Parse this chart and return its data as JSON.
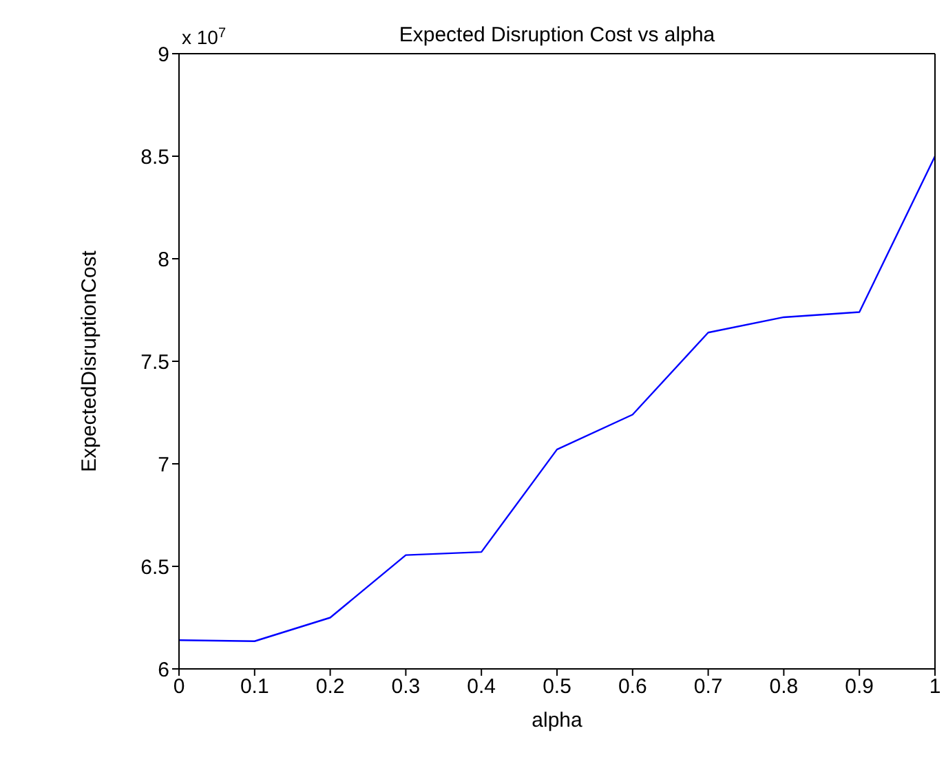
{
  "chart_data": {
    "type": "line",
    "title": "Expected Disruption Cost vs alpha",
    "xlabel": "alpha",
    "ylabel": "ExpectedDisruptionCost",
    "annotations": [
      "x 10$^{7}$"
    ],
    "x": [
      0,
      0.1,
      0.2,
      0.3,
      0.4,
      0.5,
      0.6,
      0.7,
      0.8,
      0.9,
      1
    ],
    "series": [
      {
        "color": "#0000ff",
        "values": [
          6.14,
          6.135,
          6.25,
          6.555,
          6.57,
          7.07,
          7.24,
          7.64,
          7.715,
          7.74,
          8.5
        ]
      }
    ],
    "xlim": [
      0,
      1
    ],
    "xticks": [
      0,
      0.1,
      0.2,
      0.3,
      0.4,
      0.5,
      0.6,
      0.7,
      0.8,
      0.9,
      1
    ],
    "ylim": [
      6,
      9
    ],
    "yticks": [
      6,
      6.5,
      7,
      7.5,
      8,
      8.5,
      9
    ],
    "grid": false,
    "legend": false,
    "marker": "none",
    "line_style": "solid"
  }
}
